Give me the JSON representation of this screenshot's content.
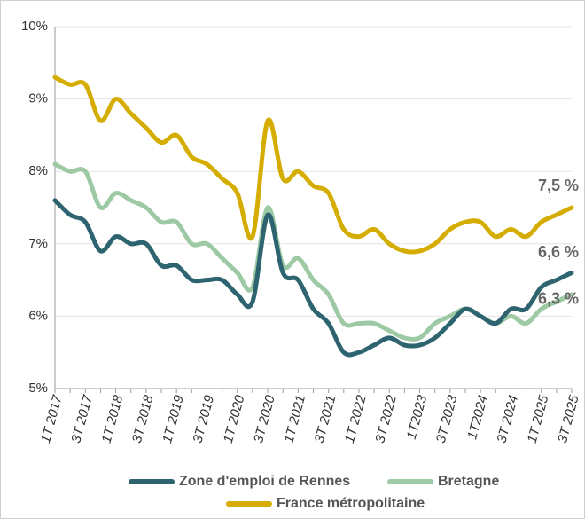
{
  "chart_data": {
    "type": "line",
    "categories": [
      "1T 2017",
      null,
      "3T 2017",
      null,
      "1T 2018",
      null,
      "3T 2018",
      null,
      "1T 2019",
      null,
      "3T 2019",
      null,
      "1T 2020",
      null,
      "3T 2020",
      null,
      "1T 2021",
      null,
      "3T 2021",
      null,
      "1T 2022",
      null,
      "3T 2022",
      null,
      "1T2023",
      null,
      "3T 2023",
      null,
      "1T2024",
      null,
      "3T 2024",
      null,
      "1T 2025",
      null,
      "3T 2025"
    ],
    "series": [
      {
        "name": "Zone d'emploi de Rennes",
        "color": "#2d6470",
        "values": [
          7.6,
          7.4,
          7.3,
          6.9,
          7.1,
          7.0,
          7.0,
          6.7,
          6.7,
          6.5,
          6.5,
          6.5,
          6.3,
          6.2,
          7.4,
          6.6,
          6.5,
          6.1,
          5.9,
          5.5,
          5.5,
          5.6,
          5.7,
          5.6,
          5.6,
          5.7,
          5.9,
          6.1,
          6.0,
          5.9,
          6.1,
          6.1,
          6.4,
          6.5,
          6.6
        ],
        "value_labels": [
          null,
          null,
          null,
          null,
          null,
          null,
          null,
          null,
          null,
          null,
          null,
          null,
          null,
          null,
          null,
          null,
          null,
          null,
          null,
          null,
          null,
          null,
          null,
          null,
          null,
          null,
          null,
          null,
          null,
          null,
          null,
          null,
          null,
          null,
          "6,6 %"
        ]
      },
      {
        "name": "Bretagne",
        "color": "#9dc9a4",
        "values": [
          8.1,
          8.0,
          8.0,
          7.5,
          7.7,
          7.6,
          7.5,
          7.3,
          7.3,
          7.0,
          7.0,
          6.8,
          6.6,
          6.4,
          7.5,
          6.7,
          6.8,
          6.5,
          6.3,
          5.9,
          5.9,
          5.9,
          5.8,
          5.7,
          5.7,
          5.9,
          6.0,
          6.1,
          6.0,
          5.9,
          6.0,
          5.9,
          6.1,
          6.2,
          6.3
        ],
        "value_labels": [
          null,
          null,
          null,
          null,
          null,
          null,
          null,
          null,
          null,
          null,
          null,
          null,
          null,
          null,
          null,
          null,
          null,
          null,
          null,
          null,
          null,
          null,
          null,
          null,
          null,
          null,
          null,
          null,
          null,
          null,
          null,
          null,
          null,
          null,
          "6,3 %"
        ]
      },
      {
        "name": "France métropolitaine",
        "color": "#d4ad00",
        "values": [
          9.3,
          9.2,
          9.2,
          8.7,
          9.0,
          8.8,
          8.6,
          8.4,
          8.5,
          8.2,
          8.1,
          7.9,
          7.7,
          7.1,
          8.7,
          7.9,
          8.0,
          7.8,
          7.7,
          7.2,
          7.1,
          7.2,
          7.0,
          6.9,
          6.9,
          7.0,
          7.2,
          7.3,
          7.3,
          7.1,
          7.2,
          7.1,
          7.3,
          7.4,
          7.5
        ],
        "value_labels": [
          null,
          null,
          null,
          null,
          null,
          null,
          null,
          null,
          null,
          null,
          null,
          null,
          null,
          null,
          null,
          null,
          null,
          null,
          null,
          null,
          null,
          null,
          null,
          null,
          null,
          null,
          null,
          null,
          null,
          null,
          null,
          null,
          null,
          null,
          "7,5 %"
        ]
      }
    ],
    "ylim": [
      5,
      10
    ],
    "yticks": [
      {
        "value": 5,
        "label": "5%"
      },
      {
        "value": 6,
        "label": "6%"
      },
      {
        "value": 7,
        "label": "7%"
      },
      {
        "value": 8,
        "label": "8%"
      },
      {
        "value": 9,
        "label": "9%"
      },
      {
        "value": 10,
        "label": "10%"
      }
    ],
    "grid": true,
    "legend": "bottom"
  }
}
